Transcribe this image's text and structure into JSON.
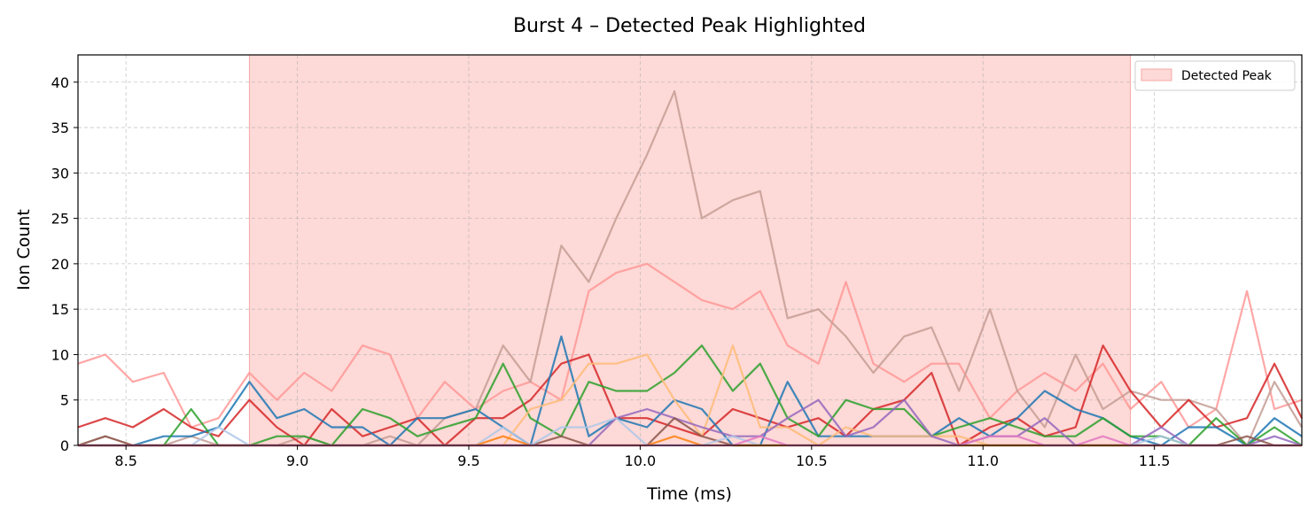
{
  "chart_data": {
    "type": "line",
    "title": "Burst 4 – Detected Peak Highlighted",
    "xlabel": "Time (ms)",
    "ylabel": "Ion Count",
    "xlim": [
      8.36,
      11.93
    ],
    "ylim": [
      0,
      43
    ],
    "xticks": [
      8.5,
      9.0,
      9.5,
      10.0,
      10.5,
      11.0,
      11.5
    ],
    "xtick_labels": [
      "8.5",
      "9.0",
      "9.5",
      "10.0",
      "10.5",
      "11.0",
      "11.5"
    ],
    "yticks": [
      0,
      5,
      10,
      15,
      20,
      25,
      30,
      35,
      40
    ],
    "ytick_labels": [
      "0",
      "5",
      "10",
      "15",
      "20",
      "25",
      "30",
      "35",
      "40"
    ],
    "grid": true,
    "legend_position": "top-right",
    "highlight": {
      "label": "Detected Peak",
      "x_start": 8.86,
      "x_end": 11.43,
      "color": "#fcc0bc"
    },
    "x": [
      8.36,
      8.44,
      8.52,
      8.61,
      8.69,
      8.77,
      8.86,
      8.94,
      9.02,
      9.1,
      9.19,
      9.27,
      9.35,
      9.43,
      9.52,
      9.6,
      9.68,
      9.77,
      9.85,
      9.93,
      10.02,
      10.1,
      10.18,
      10.27,
      10.35,
      10.43,
      10.52,
      10.6,
      10.68,
      10.77,
      10.85,
      10.93,
      11.02,
      11.1,
      11.18,
      11.27,
      11.35,
      11.43,
      11.52,
      11.6,
      11.68,
      11.77,
      11.85,
      11.93
    ],
    "series": [
      {
        "color": "#ff9896",
        "values": [
          9,
          10,
          7,
          8,
          2,
          3,
          8,
          5,
          8,
          6,
          11,
          10,
          3,
          7,
          4,
          6,
          7,
          5,
          17,
          19,
          20,
          18,
          16,
          15,
          17,
          11,
          9,
          18,
          9,
          7,
          9,
          9,
          3,
          6,
          8,
          6,
          9,
          4,
          7,
          2,
          4,
          17,
          4,
          5
        ]
      },
      {
        "color": "#c49c94",
        "values": [
          0,
          1,
          0,
          0,
          1,
          0,
          0,
          0,
          1,
          0,
          0,
          1,
          0,
          3,
          4,
          11,
          7,
          22,
          18,
          25,
          32,
          39,
          25,
          27,
          28,
          14,
          15,
          12,
          8,
          12,
          13,
          6,
          15,
          6,
          2,
          10,
          4,
          6,
          5,
          5,
          4,
          0,
          7,
          2
        ]
      },
      {
        "color": "#d62728",
        "values": [
          2,
          3,
          2,
          4,
          2,
          1,
          5,
          2,
          0,
          4,
          1,
          2,
          3,
          0,
          3,
          3,
          5,
          9,
          10,
          3,
          3,
          2,
          1,
          4,
          3,
          2,
          3,
          1,
          4,
          5,
          8,
          0,
          2,
          3,
          1,
          2,
          11,
          6,
          2,
          5,
          2,
          3,
          9,
          3
        ]
      },
      {
        "color": "#1f77b4",
        "values": [
          0,
          0,
          0,
          1,
          1,
          2,
          7,
          3,
          4,
          2,
          2,
          0,
          3,
          3,
          4,
          2,
          0,
          12,
          1,
          3,
          2,
          5,
          4,
          0,
          0,
          7,
          1,
          1,
          1,
          1,
          1,
          3,
          1,
          3,
          6,
          4,
          3,
          1,
          0,
          2,
          2,
          0,
          3,
          1
        ]
      },
      {
        "color": "#2ca02c",
        "values": [
          0,
          0,
          0,
          0,
          4,
          0,
          0,
          1,
          1,
          0,
          4,
          3,
          1,
          2,
          3,
          9,
          3,
          1,
          7,
          6,
          6,
          8,
          11,
          6,
          9,
          3,
          1,
          5,
          4,
          4,
          1,
          2,
          3,
          2,
          1,
          1,
          3,
          1,
          1,
          0,
          3,
          0,
          2,
          0
        ]
      },
      {
        "color": "#ffbb78",
        "values": [
          0,
          0,
          0,
          0,
          0,
          0,
          0,
          0,
          0,
          0,
          0,
          0,
          0,
          0,
          0,
          0,
          4,
          5,
          9,
          9,
          10,
          5,
          1,
          11,
          2,
          2,
          0,
          2,
          1,
          1,
          1,
          1,
          0,
          0,
          0,
          0,
          0,
          0,
          0,
          0,
          0,
          0,
          0,
          0
        ]
      },
      {
        "color": "#9467bd",
        "values": [
          0,
          0,
          0,
          0,
          0,
          0,
          0,
          0,
          0,
          0,
          0,
          0,
          0,
          0,
          0,
          0,
          0,
          0,
          0,
          3,
          4,
          3,
          2,
          1,
          1,
          3,
          5,
          1,
          2,
          5,
          1,
          0,
          1,
          1,
          3,
          0,
          0,
          0,
          2,
          0,
          0,
          0,
          1,
          0
        ]
      },
      {
        "color": "#8c564b",
        "values": [
          0,
          1,
          0,
          0,
          0,
          0,
          0,
          0,
          0,
          0,
          0,
          0,
          0,
          0,
          0,
          0,
          0,
          1,
          0,
          0,
          0,
          3,
          1,
          0,
          0,
          0,
          0,
          0,
          0,
          0,
          0,
          0,
          0,
          0,
          0,
          0,
          0,
          0,
          0,
          0,
          0,
          1,
          0,
          0
        ]
      },
      {
        "color": "#aec7e8",
        "values": [
          0,
          0,
          0,
          0,
          0,
          2,
          0,
          0,
          0,
          0,
          0,
          0,
          0,
          0,
          0,
          2,
          0,
          2,
          2,
          3,
          0,
          0,
          0,
          1,
          0,
          0,
          0,
          0,
          0,
          0,
          0,
          0,
          0,
          0,
          0,
          0,
          0,
          0,
          1,
          0,
          0,
          0,
          0,
          0
        ]
      },
      {
        "color": "#ff7f0e",
        "values": [
          0,
          0,
          0,
          0,
          0,
          0,
          0,
          0,
          0,
          0,
          0,
          0,
          0,
          0,
          0,
          1,
          0,
          0,
          0,
          0,
          0,
          1,
          0,
          0,
          0,
          0,
          0,
          0,
          0,
          0,
          0,
          0,
          0,
          0,
          0,
          0,
          0,
          0,
          0,
          0,
          0,
          0,
          0,
          0
        ]
      },
      {
        "color": "#e377c2",
        "values": [
          0,
          0,
          0,
          0,
          0,
          0,
          0,
          0,
          0,
          0,
          0,
          0,
          0,
          0,
          0,
          0,
          0,
          0,
          0,
          0,
          0,
          0,
          0,
          0,
          1,
          0,
          0,
          0,
          0,
          0,
          0,
          0,
          1,
          1,
          0,
          0,
          1,
          0,
          0,
          0,
          0,
          0,
          0,
          0
        ]
      }
    ]
  }
}
